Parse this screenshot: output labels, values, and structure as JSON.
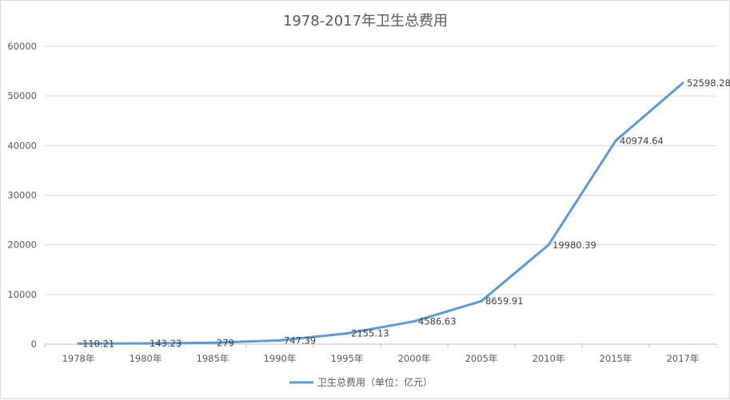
{
  "chart_data": {
    "type": "line",
    "title": "1978-2017年卫生总费用",
    "xlabel": "",
    "ylabel": "",
    "categories": [
      "1978年",
      "1980年",
      "1985年",
      "1990年",
      "1995年",
      "2000年",
      "2005年",
      "2010年",
      "2015年",
      "2017年"
    ],
    "series": [
      {
        "name": "卫生总费用（单位：亿元）",
        "values": [
          110.21,
          143.23,
          279,
          747.39,
          2155.13,
          4586.63,
          8659.91,
          19980.39,
          40974.64,
          52598.28
        ],
        "data_labels": [
          "110.21",
          "143.23",
          "279",
          "747.39",
          "2155.13",
          "4586.63",
          "8659.91",
          "19980.39",
          "40974.64",
          "52598.28"
        ],
        "color": "#5b9bd5"
      }
    ],
    "ylim": [
      0,
      60000
    ],
    "yticks": [
      0,
      10000,
      20000,
      30000,
      40000,
      50000,
      60000
    ],
    "ytick_labels": [
      "0",
      "10000",
      "20000",
      "30000",
      "40000",
      "50000",
      "60000"
    ],
    "grid": true,
    "legend_position": "bottom"
  }
}
